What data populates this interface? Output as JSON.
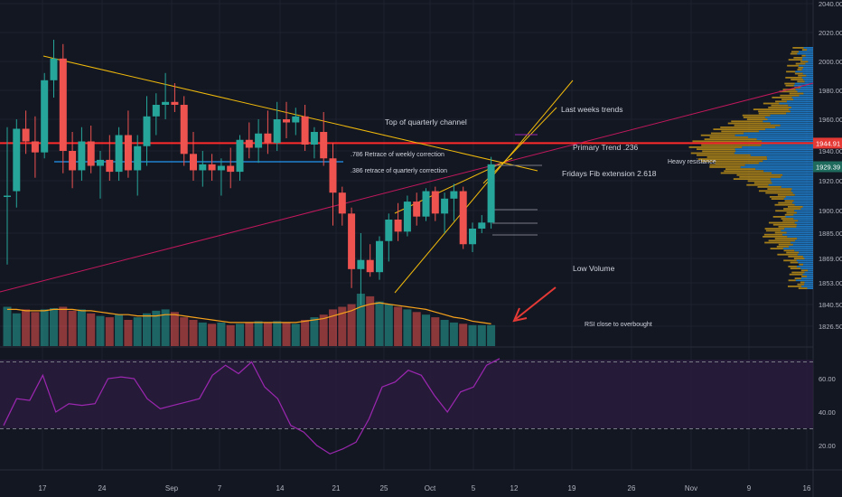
{
  "chart_data": {
    "type": "candlestick",
    "price_axis": {
      "ticks": [
        1826.5,
        1840.5,
        1853.0,
        1869.0,
        1885.0,
        1900.0,
        1920.0,
        1940.0,
        1960.0,
        1980.0,
        2000.0,
        2020.0,
        2040.0
      ],
      "tick_labels": [
        "1826.50",
        "1840.50",
        "1853.00",
        "1869.00",
        "1885.00",
        "1900.00",
        "1920.00",
        "1940.00",
        "1960.00",
        "1980.00",
        "2000.00",
        "2020.00",
        "2040.00"
      ],
      "current_price": 1944.91,
      "current_price_label": "1944.91",
      "second_price": 1929.39,
      "second_price_label": "1929.39"
    },
    "time_axis": {
      "labels": [
        "17",
        "24",
        "Sep",
        "7",
        "14",
        "21",
        "25",
        "Oct",
        "5",
        "12",
        "19",
        "26",
        "Nov",
        "9",
        "16"
      ]
    },
    "candles": [
      {
        "o": 1910,
        "h": 1955,
        "l": 1865,
        "c": 1910
      },
      {
        "o": 1913,
        "h": 1960,
        "l": 1902,
        "c": 1954
      },
      {
        "o": 1954,
        "h": 1966,
        "l": 1938,
        "c": 1946
      },
      {
        "o": 1946,
        "h": 1962,
        "l": 1922,
        "c": 1939
      },
      {
        "o": 1939,
        "h": 1992,
        "l": 1935,
        "c": 1987
      },
      {
        "o": 1987,
        "h": 2015,
        "l": 1975,
        "c": 2002
      },
      {
        "o": 2002,
        "h": 2012,
        "l": 1925,
        "c": 1940
      },
      {
        "o": 1940,
        "h": 1952,
        "l": 1915,
        "c": 1927
      },
      {
        "o": 1927,
        "h": 1955,
        "l": 1920,
        "c": 1946
      },
      {
        "o": 1946,
        "h": 1956,
        "l": 1925,
        "c": 1930
      },
      {
        "o": 1930,
        "h": 1940,
        "l": 1908,
        "c": 1934
      },
      {
        "o": 1934,
        "h": 1950,
        "l": 1920,
        "c": 1926
      },
      {
        "o": 1926,
        "h": 1955,
        "l": 1920,
        "c": 1950
      },
      {
        "o": 1950,
        "h": 1966,
        "l": 1922,
        "c": 1927
      },
      {
        "o": 1927,
        "h": 1950,
        "l": 1910,
        "c": 1943
      },
      {
        "o": 1943,
        "h": 1976,
        "l": 1930,
        "c": 1962
      },
      {
        "o": 1962,
        "h": 1978,
        "l": 1950,
        "c": 1970
      },
      {
        "o": 1970,
        "h": 1992,
        "l": 1960,
        "c": 1972
      },
      {
        "o": 1972,
        "h": 1985,
        "l": 1965,
        "c": 1970
      },
      {
        "o": 1970,
        "h": 1976,
        "l": 1930,
        "c": 1938
      },
      {
        "o": 1938,
        "h": 1952,
        "l": 1920,
        "c": 1927
      },
      {
        "o": 1927,
        "h": 1940,
        "l": 1916,
        "c": 1931
      },
      {
        "o": 1931,
        "h": 1938,
        "l": 1920,
        "c": 1927
      },
      {
        "o": 1927,
        "h": 1935,
        "l": 1910,
        "c": 1930
      },
      {
        "o": 1930,
        "h": 1942,
        "l": 1915,
        "c": 1926
      },
      {
        "o": 1926,
        "h": 1950,
        "l": 1920,
        "c": 1947
      },
      {
        "o": 1947,
        "h": 1958,
        "l": 1935,
        "c": 1942
      },
      {
        "o": 1942,
        "h": 1960,
        "l": 1932,
        "c": 1951
      },
      {
        "o": 1951,
        "h": 1966,
        "l": 1938,
        "c": 1945
      },
      {
        "o": 1945,
        "h": 1972,
        "l": 1940,
        "c": 1960
      },
      {
        "o": 1960,
        "h": 1972,
        "l": 1948,
        "c": 1958
      },
      {
        "o": 1958,
        "h": 1968,
        "l": 1950,
        "c": 1962
      },
      {
        "o": 1962,
        "h": 1970,
        "l": 1940,
        "c": 1944
      },
      {
        "o": 1944,
        "h": 1955,
        "l": 1935,
        "c": 1952
      },
      {
        "o": 1952,
        "h": 1965,
        "l": 1930,
        "c": 1935
      },
      {
        "o": 1935,
        "h": 1945,
        "l": 1890,
        "c": 1912
      },
      {
        "o": 1912,
        "h": 1916,
        "l": 1890,
        "c": 1898
      },
      {
        "o": 1898,
        "h": 1902,
        "l": 1850,
        "c": 1862
      },
      {
        "o": 1862,
        "h": 1885,
        "l": 1840,
        "c": 1868
      },
      {
        "o": 1868,
        "h": 1878,
        "l": 1857,
        "c": 1860
      },
      {
        "o": 1860,
        "h": 1883,
        "l": 1855,
        "c": 1880
      },
      {
        "o": 1880,
        "h": 1898,
        "l": 1867,
        "c": 1894
      },
      {
        "o": 1894,
        "h": 1905,
        "l": 1880,
        "c": 1886
      },
      {
        "o": 1886,
        "h": 1910,
        "l": 1883,
        "c": 1906
      },
      {
        "o": 1906,
        "h": 1912,
        "l": 1890,
        "c": 1896
      },
      {
        "o": 1896,
        "h": 1915,
        "l": 1893,
        "c": 1913
      },
      {
        "o": 1913,
        "h": 1916,
        "l": 1893,
        "c": 1898
      },
      {
        "o": 1898,
        "h": 1912,
        "l": 1885,
        "c": 1908
      },
      {
        "o": 1908,
        "h": 1918,
        "l": 1893,
        "c": 1913
      },
      {
        "o": 1913,
        "h": 1916,
        "l": 1875,
        "c": 1878
      },
      {
        "o": 1878,
        "h": 1892,
        "l": 1873,
        "c": 1888
      },
      {
        "o": 1888,
        "h": 1897,
        "l": 1885,
        "c": 1892
      },
      {
        "o": 1892,
        "h": 1936,
        "l": 1888,
        "c": 1931
      }
    ],
    "volume": {
      "values": [
        30,
        25,
        28,
        26,
        28,
        29,
        30,
        27,
        28,
        25,
        23,
        22,
        24,
        20,
        22,
        25,
        27,
        28,
        26,
        22,
        20,
        18,
        17,
        18,
        16,
        17,
        18,
        19,
        18,
        19,
        18,
        17,
        20,
        22,
        24,
        28,
        30,
        32,
        40,
        38,
        34,
        32,
        30,
        28,
        26,
        24,
        22,
        20,
        18,
        17,
        16,
        16,
        16
      ],
      "ma": [
        28,
        28,
        27,
        27,
        27,
        28,
        28,
        28,
        27,
        27,
        26,
        25,
        24,
        24,
        23,
        23,
        23,
        24,
        24,
        23,
        22,
        21,
        20,
        19,
        18,
        18,
        18,
        18,
        18,
        18,
        18,
        18,
        19,
        20,
        21,
        23,
        25,
        27,
        30,
        32,
        33,
        32,
        31,
        30,
        29,
        28,
        26,
        24,
        22,
        21,
        19,
        18,
        17
      ]
    },
    "rsi": {
      "tick_labels": [
        "20.00",
        "40.00",
        "60.00"
      ],
      "values": [
        32,
        48,
        47,
        62,
        40,
        45,
        44,
        45,
        60,
        61,
        60,
        48,
        42,
        44,
        46,
        48,
        62,
        68,
        63,
        70,
        55,
        48,
        32,
        28,
        20,
        15,
        18,
        22,
        36,
        55,
        58,
        65,
        62,
        50,
        40,
        52,
        55,
        68,
        72
      ],
      "upper": 70,
      "lower": 30
    },
    "annotations": {
      "top_channel": "Top of quarterly channel",
      "last_weeks": "Last weeks trends",
      "primary_trend": "Primary Trend .236",
      "retrace_786": ".786 Retrace of weekly correction",
      "retrace_386": ".386 retrace of quarterly correction",
      "fib_ext": "Fridays Fib extension 2.618",
      "heavy_resistance": "Heavy resistance",
      "low_volume": "Low Volume",
      "rsi_note": "RSI close to overbought"
    },
    "colors": {
      "background": "#131722",
      "bull": "#26a69a",
      "bear": "#ef5350",
      "trendline": "#f0b90b",
      "channel": "#c2185b",
      "resistance": "#ff2b2b",
      "level": "#2196f3",
      "rsi_line": "#9c27b0",
      "rsi_band": "#2a1b3d",
      "volume_ma": "#f7a21b",
      "profile_up": "#2196f3",
      "profile_down": "#d4a017",
      "arrow": "#e53935",
      "axis_text": "#b2b5be"
    }
  }
}
